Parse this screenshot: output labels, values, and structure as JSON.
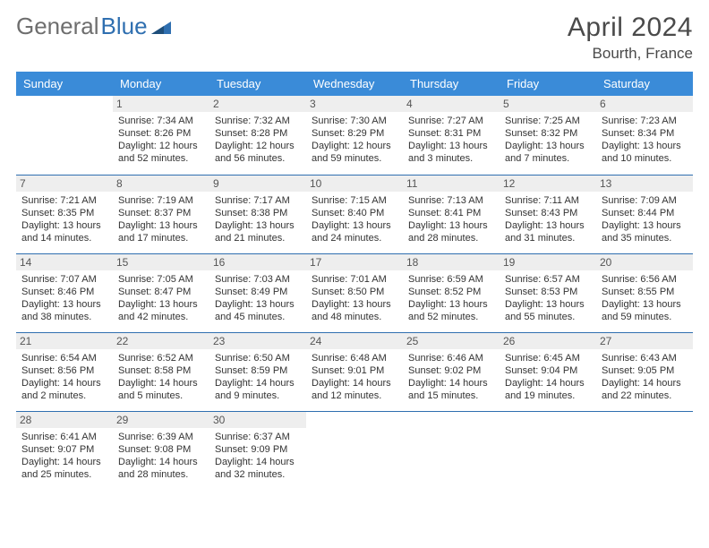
{
  "brand": {
    "part1": "General",
    "part2": "Blue",
    "triangle_color": "#2f6fb0"
  },
  "title": {
    "month": "April 2024",
    "location": "Bourth, France"
  },
  "colors": {
    "header_bg": "#3a8bd8",
    "header_fg": "#ffffff",
    "daynum_bg": "#eeeeee",
    "row_divider": "#2f6fb0",
    "text": "#333333"
  },
  "weekdays": [
    "Sunday",
    "Monday",
    "Tuesday",
    "Wednesday",
    "Thursday",
    "Friday",
    "Saturday"
  ],
  "grid": {
    "start_offset": 1,
    "days": [
      {
        "n": "1",
        "sr": "7:34 AM",
        "ss": "8:26 PM",
        "dl": "12 hours and 52 minutes."
      },
      {
        "n": "2",
        "sr": "7:32 AM",
        "ss": "8:28 PM",
        "dl": "12 hours and 56 minutes."
      },
      {
        "n": "3",
        "sr": "7:30 AM",
        "ss": "8:29 PM",
        "dl": "12 hours and 59 minutes."
      },
      {
        "n": "4",
        "sr": "7:27 AM",
        "ss": "8:31 PM",
        "dl": "13 hours and 3 minutes."
      },
      {
        "n": "5",
        "sr": "7:25 AM",
        "ss": "8:32 PM",
        "dl": "13 hours and 7 minutes."
      },
      {
        "n": "6",
        "sr": "7:23 AM",
        "ss": "8:34 PM",
        "dl": "13 hours and 10 minutes."
      },
      {
        "n": "7",
        "sr": "7:21 AM",
        "ss": "8:35 PM",
        "dl": "13 hours and 14 minutes."
      },
      {
        "n": "8",
        "sr": "7:19 AM",
        "ss": "8:37 PM",
        "dl": "13 hours and 17 minutes."
      },
      {
        "n": "9",
        "sr": "7:17 AM",
        "ss": "8:38 PM",
        "dl": "13 hours and 21 minutes."
      },
      {
        "n": "10",
        "sr": "7:15 AM",
        "ss": "8:40 PM",
        "dl": "13 hours and 24 minutes."
      },
      {
        "n": "11",
        "sr": "7:13 AM",
        "ss": "8:41 PM",
        "dl": "13 hours and 28 minutes."
      },
      {
        "n": "12",
        "sr": "7:11 AM",
        "ss": "8:43 PM",
        "dl": "13 hours and 31 minutes."
      },
      {
        "n": "13",
        "sr": "7:09 AM",
        "ss": "8:44 PM",
        "dl": "13 hours and 35 minutes."
      },
      {
        "n": "14",
        "sr": "7:07 AM",
        "ss": "8:46 PM",
        "dl": "13 hours and 38 minutes."
      },
      {
        "n": "15",
        "sr": "7:05 AM",
        "ss": "8:47 PM",
        "dl": "13 hours and 42 minutes."
      },
      {
        "n": "16",
        "sr": "7:03 AM",
        "ss": "8:49 PM",
        "dl": "13 hours and 45 minutes."
      },
      {
        "n": "17",
        "sr": "7:01 AM",
        "ss": "8:50 PM",
        "dl": "13 hours and 48 minutes."
      },
      {
        "n": "18",
        "sr": "6:59 AM",
        "ss": "8:52 PM",
        "dl": "13 hours and 52 minutes."
      },
      {
        "n": "19",
        "sr": "6:57 AM",
        "ss": "8:53 PM",
        "dl": "13 hours and 55 minutes."
      },
      {
        "n": "20",
        "sr": "6:56 AM",
        "ss": "8:55 PM",
        "dl": "13 hours and 59 minutes."
      },
      {
        "n": "21",
        "sr": "6:54 AM",
        "ss": "8:56 PM",
        "dl": "14 hours and 2 minutes."
      },
      {
        "n": "22",
        "sr": "6:52 AM",
        "ss": "8:58 PM",
        "dl": "14 hours and 5 minutes."
      },
      {
        "n": "23",
        "sr": "6:50 AM",
        "ss": "8:59 PM",
        "dl": "14 hours and 9 minutes."
      },
      {
        "n": "24",
        "sr": "6:48 AM",
        "ss": "9:01 PM",
        "dl": "14 hours and 12 minutes."
      },
      {
        "n": "25",
        "sr": "6:46 AM",
        "ss": "9:02 PM",
        "dl": "14 hours and 15 minutes."
      },
      {
        "n": "26",
        "sr": "6:45 AM",
        "ss": "9:04 PM",
        "dl": "14 hours and 19 minutes."
      },
      {
        "n": "27",
        "sr": "6:43 AM",
        "ss": "9:05 PM",
        "dl": "14 hours and 22 minutes."
      },
      {
        "n": "28",
        "sr": "6:41 AM",
        "ss": "9:07 PM",
        "dl": "14 hours and 25 minutes."
      },
      {
        "n": "29",
        "sr": "6:39 AM",
        "ss": "9:08 PM",
        "dl": "14 hours and 28 minutes."
      },
      {
        "n": "30",
        "sr": "6:37 AM",
        "ss": "9:09 PM",
        "dl": "14 hours and 32 minutes."
      }
    ]
  },
  "labels": {
    "sunrise": "Sunrise:",
    "sunset": "Sunset:",
    "daylight": "Daylight:"
  }
}
